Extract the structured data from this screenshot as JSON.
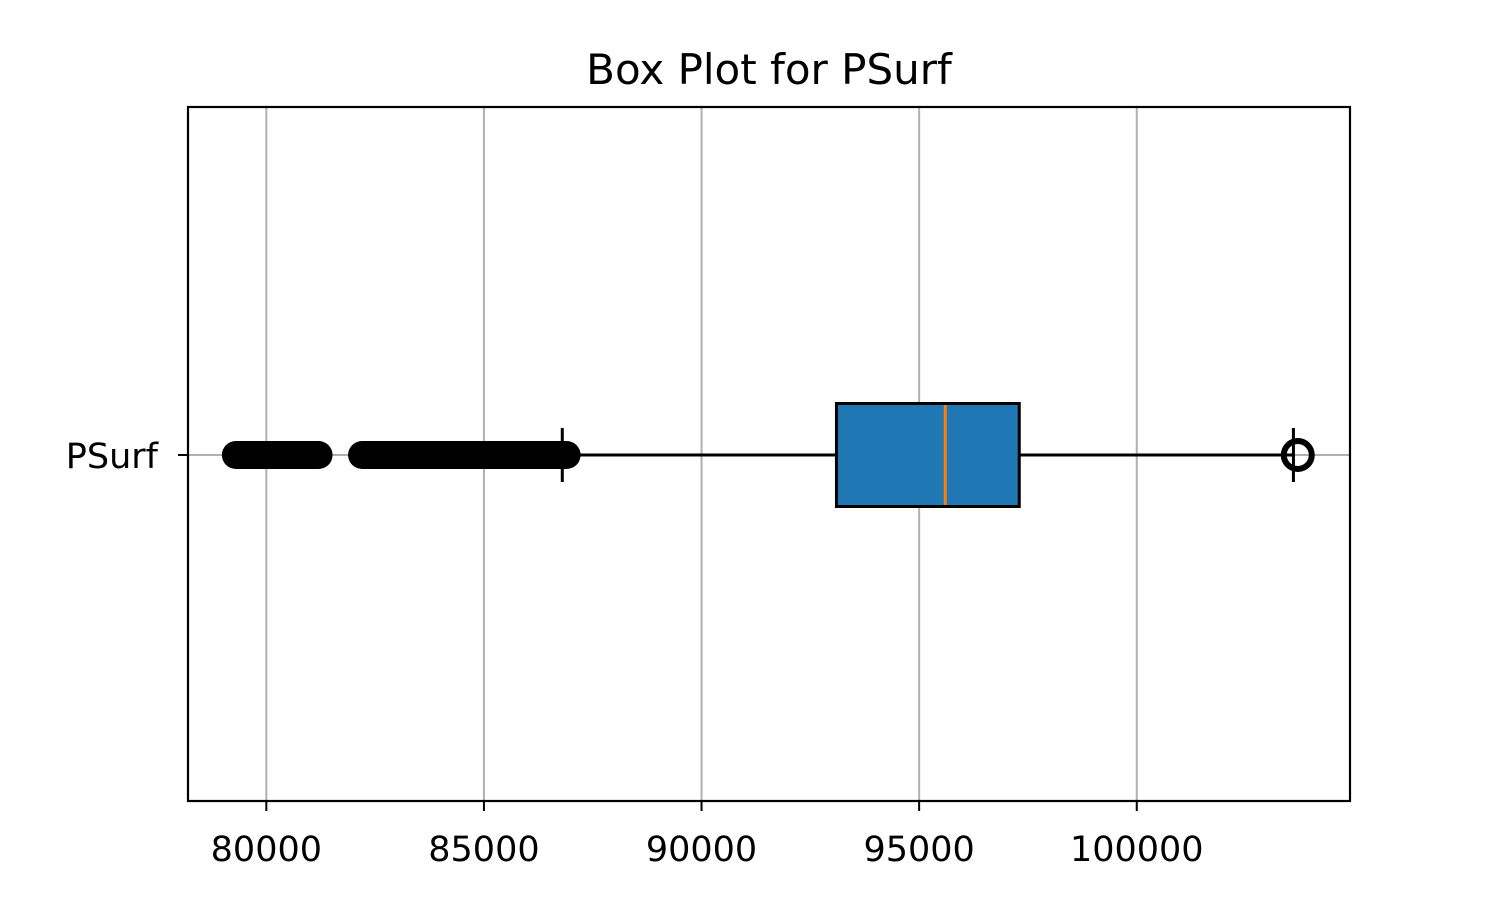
{
  "chart_data": {
    "type": "boxplot",
    "orientation": "horizontal",
    "title": "Box Plot for PSurf",
    "xlabel": "",
    "ylabel": "",
    "xlim": [
      78200,
      104900
    ],
    "xticks": [
      80000,
      85000,
      90000,
      95000,
      100000
    ],
    "xtick_labels": [
      "80000",
      "85000",
      "90000",
      "95000",
      "100000"
    ],
    "grid": true,
    "series": [
      {
        "name": "PSurf",
        "whisker_low": 86800,
        "q1": 93100,
        "median": 95600,
        "q3": 97300,
        "whisker_high": 103600,
        "outlier_ranges_low": [
          [
            79300,
            81200
          ],
          [
            82200,
            86900
          ]
        ],
        "outliers_high": [
          103700
        ]
      }
    ],
    "colors": {
      "box_fill": "#1f77b4",
      "median": "#ff7f0e",
      "grid": "#b0b0b0",
      "line": "#000000"
    }
  }
}
